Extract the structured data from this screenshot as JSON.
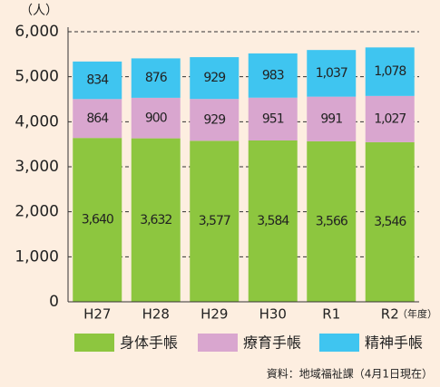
{
  "chart_data": {
    "type": "bar",
    "stacked": true,
    "unit_label": "（人）",
    "x_unit_label": "（年度）",
    "source": "資料：地域福祉課（4月1日現在）",
    "categories": [
      "H27",
      "H28",
      "H29",
      "H30",
      "R1",
      "R2"
    ],
    "series": [
      {
        "name": "身体手帳",
        "color": "#8dc63f",
        "values": [
          3640,
          3632,
          3577,
          3584,
          3566,
          3546
        ],
        "value_labels": [
          "3,640",
          "3,632",
          "3,577",
          "3,584",
          "3,566",
          "3,546"
        ]
      },
      {
        "name": "療育手帳",
        "color": "#d9a6cf",
        "values": [
          864,
          900,
          929,
          951,
          991,
          1027
        ],
        "value_labels": [
          "864",
          "900",
          "929",
          "951",
          "991",
          "1,027"
        ]
      },
      {
        "name": "精神手帳",
        "color": "#3fc5f0",
        "values": [
          834,
          876,
          929,
          983,
          1037,
          1078
        ],
        "value_labels": [
          "834",
          "876",
          "929",
          "983",
          "1,037",
          "1,078"
        ]
      }
    ],
    "ylim": [
      0,
      6000
    ],
    "yticks": [
      0,
      {
        "value": 1000,
        "label": "1,000"
      },
      {
        "value": 2000,
        "label": "2,000"
      },
      {
        "value": 3000,
        "label": "3,000"
      },
      {
        "value": 4000,
        "label": "4,000"
      },
      {
        "value": 5000,
        "label": "5,000"
      },
      {
        "value": 6000,
        "label": "6,000"
      }
    ],
    "grid": true
  }
}
